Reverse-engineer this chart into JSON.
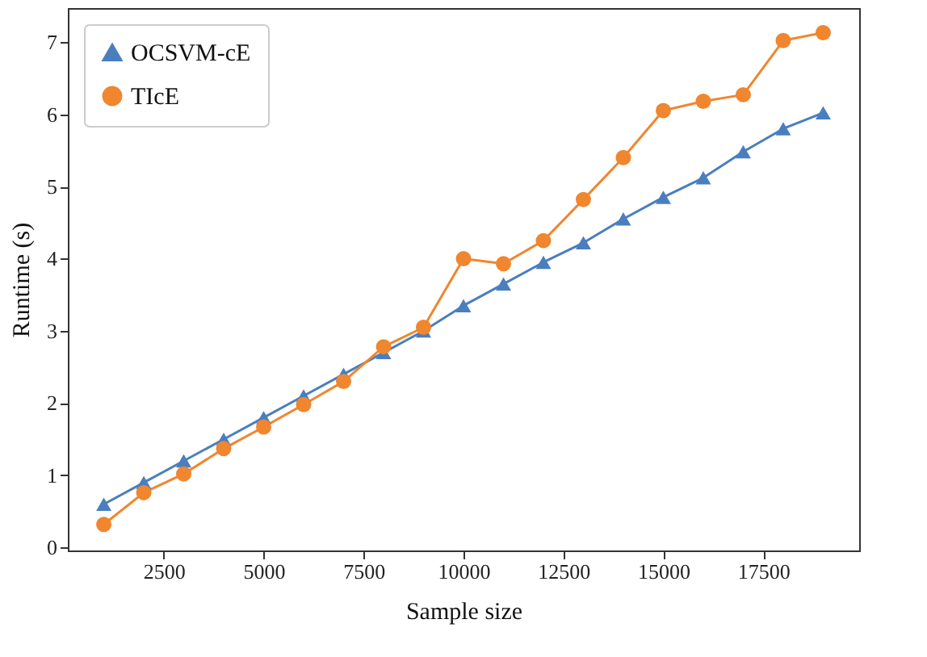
{
  "chart_data": {
    "type": "line",
    "xlabel": "Sample size",
    "ylabel": "Runtime (s)",
    "x": [
      1000,
      2000,
      3000,
      4000,
      5000,
      6000,
      7000,
      8000,
      9000,
      10000,
      11000,
      12000,
      13000,
      14000,
      15000,
      16000,
      17000,
      18000,
      19000
    ],
    "series": [
      {
        "name": "OCSVM-cE",
        "color": "#4a7ebf",
        "marker": "triangle",
        "values": [
          0.6,
          0.9,
          1.2,
          1.5,
          1.8,
          2.1,
          2.4,
          2.7,
          3.0,
          3.35,
          3.65,
          3.95,
          4.22,
          4.55,
          4.85,
          5.12,
          5.48,
          5.8,
          6.02
        ]
      },
      {
        "name": "TIcE",
        "color": "#f0862e",
        "marker": "circle",
        "values": [
          0.32,
          0.76,
          1.02,
          1.37,
          1.67,
          1.98,
          2.3,
          2.78,
          3.05,
          4.0,
          3.93,
          4.25,
          4.82,
          5.4,
          6.05,
          6.18,
          6.27,
          7.02,
          7.13
        ]
      }
    ],
    "xlim": [
      100,
      19900
    ],
    "xticks": [
      2500,
      5000,
      7500,
      10000,
      12500,
      15000,
      17500
    ],
    "ylim": [
      -0.04,
      7.47
    ],
    "yticks": [
      0,
      1,
      2,
      3,
      4,
      5,
      6,
      7
    ],
    "grid": false,
    "legend": "top left",
    "line_style": "solid"
  }
}
